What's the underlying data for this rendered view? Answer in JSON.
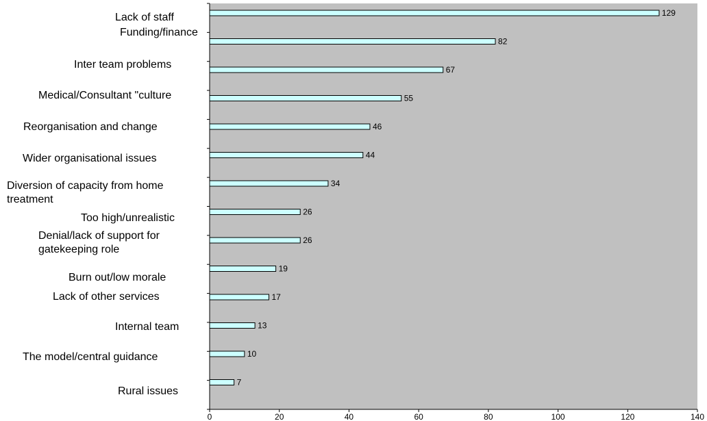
{
  "chart_data": {
    "type": "bar",
    "orientation": "horizontal",
    "categories": [
      "Lack of staff",
      "Funding/finance",
      "Inter team problems",
      "Medical/Consultant \"culture",
      "Reorganisation and change",
      "Wider organisational issues",
      "Diversion of capacity from home treatment",
      "Too high/unrealistic",
      "Denial/lack of support for gatekeeping role",
      "Burn out/low morale",
      "Lack of other services",
      "Internal team",
      "The model/central guidance",
      "Rural issues"
    ],
    "values": [
      129,
      82,
      67,
      55,
      46,
      44,
      34,
      26,
      26,
      19,
      17,
      13,
      10,
      7
    ],
    "data_labels": [
      "129",
      "82",
      "67",
      "55",
      "46",
      "44",
      "34",
      "26",
      "26",
      "19",
      "17",
      "13",
      "10",
      "7"
    ],
    "xlim": [
      0,
      140
    ],
    "xticks": [
      "0",
      "20",
      "40",
      "60",
      "80",
      "100",
      "120",
      "140"
    ],
    "grid": false,
    "legend": "none",
    "colors": {
      "plot_background": "#c0c0c0",
      "bar_fill": "#ccffff",
      "bar_stroke": "#000000"
    }
  }
}
